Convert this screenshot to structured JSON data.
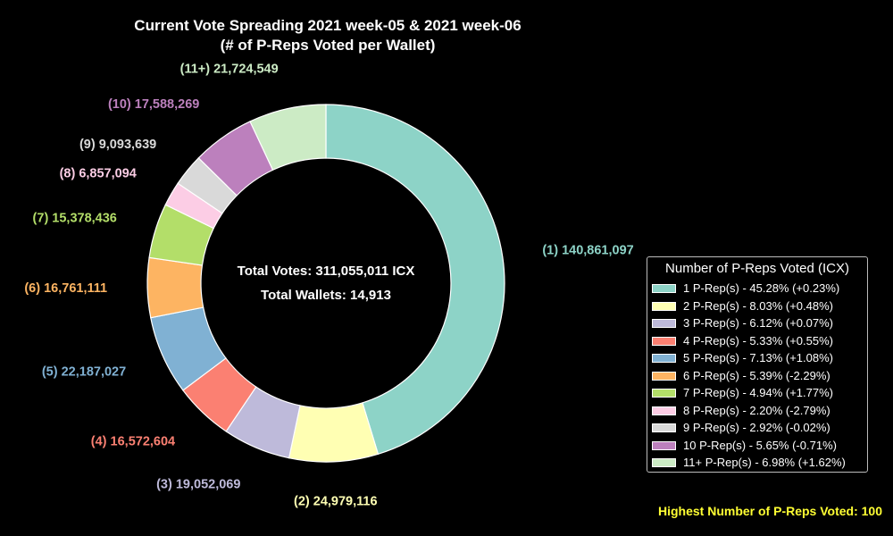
{
  "chart_data": {
    "type": "pie",
    "variant": "donut",
    "title": [
      "Current Vote Spreading 2021 week-05 & 2021 week-06",
      "(# of P-Reps Voted per Wallet)"
    ],
    "categories": [
      "(1)",
      "(2)",
      "(3)",
      "(4)",
      "(5)",
      "(6)",
      "(7)",
      "(8)",
      "(9)",
      "(10)",
      "(11+)"
    ],
    "values": [
      140861097,
      24979116,
      19052069,
      16572604,
      22187027,
      16761111,
      15378436,
      6857094,
      9093639,
      17588269,
      21724549
    ],
    "slice_labels": [
      "(1) 140,861,097",
      "(2) 24,979,116",
      "(3) 19,052,069",
      "(4) 16,572,604",
      "(5) 22,187,027",
      "(6) 16,761,111",
      "(7) 15,378,436",
      "(8) 6,857,094",
      "(9) 9,093,639",
      "(10) 17,588,269",
      "(11+) 21,724,549"
    ],
    "colors": [
      "#8dd3c7",
      "#ffffb3",
      "#bebada",
      "#fb8072",
      "#80b1d3",
      "#fdb462",
      "#b3de69",
      "#fccde5",
      "#d9d9d9",
      "#bc80bd",
      "#ccebc5"
    ],
    "center_text": [
      "Total Votes: 311,055,011 ICX",
      "Total Wallets: 14,913"
    ],
    "legend": {
      "title": "Number of P-Reps Voted (ICX)",
      "position": "right",
      "entries": [
        "1 P-Rep(s) - 45.28% (+0.23%)",
        "2 P-Rep(s) - 8.03% (+0.48%)",
        "3 P-Rep(s) - 6.12% (+0.07%)",
        "4 P-Rep(s) - 5.33% (+0.55%)",
        "5 P-Rep(s) - 7.13% (+1.08%)",
        "6 P-Rep(s) - 5.39% (-2.29%)",
        "7 P-Rep(s) - 4.94% (+1.77%)",
        "8 P-Rep(s) - 2.20% (-2.79%)",
        "9 P-Rep(s) - 2.92% (-0.02%)",
        "10 P-Rep(s) - 5.65% (-0.71%)",
        "11+ P-Rep(s) - 6.98% (+1.62%)"
      ]
    },
    "footer_note": "Highest Number of P-Reps Voted: 100",
    "start": "top",
    "direction": "clockwise"
  },
  "theme": {
    "background": "#000000",
    "text": "#ffffff",
    "note": "#ffff33",
    "edge": "#ffffff"
  }
}
